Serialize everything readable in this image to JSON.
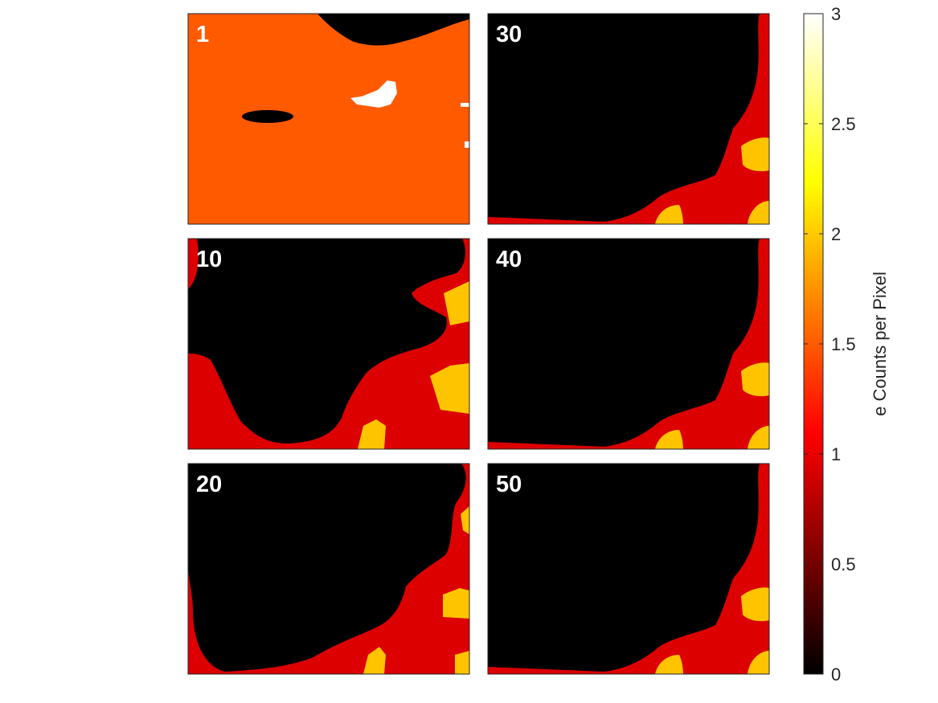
{
  "chart_data": {
    "type": "heatmap",
    "colormap": "hot",
    "colorbar": {
      "label": "e Counts per Pixel",
      "range": [
        0,
        3
      ],
      "ticks": [
        0,
        0.5,
        1,
        1.5,
        2,
        2.5,
        3
      ],
      "tick_labels": [
        "0",
        "0.5",
        "1",
        "1.5",
        "2",
        "2.5",
        "3"
      ],
      "location": "right"
    },
    "layout": {
      "rows": 3,
      "columns": 2
    },
    "panels": [
      {
        "label": "1",
        "dominant_value": 1.6,
        "features": [
          "dark region top-center",
          "small dark ellipse left-center",
          "white specks near 3 right-of-center"
        ]
      },
      {
        "label": "10",
        "dominant_value": 0,
        "features": [
          "red border regions",
          "yellow patches bottom-right"
        ]
      },
      {
        "label": "20",
        "dominant_value": 0,
        "features": [
          "red border regions",
          "yellow patches right and bottom"
        ]
      },
      {
        "label": "30",
        "dominant_value": 0,
        "features": [
          "red border right and bottom",
          "yellow patches bottom-right"
        ]
      },
      {
        "label": "40",
        "dominant_value": 0,
        "features": [
          "red border right and bottom",
          "yellow patches bottom-right"
        ]
      },
      {
        "label": "50",
        "dominant_value": 0,
        "features": [
          "red border right and bottom",
          "yellow patches bottom-right"
        ]
      }
    ],
    "colors": {
      "black": "#000000",
      "red": "#dd0000",
      "orange": "#ff5a00",
      "yellow": "#ffc400",
      "white": "#ffffff"
    },
    "grid": false
  }
}
